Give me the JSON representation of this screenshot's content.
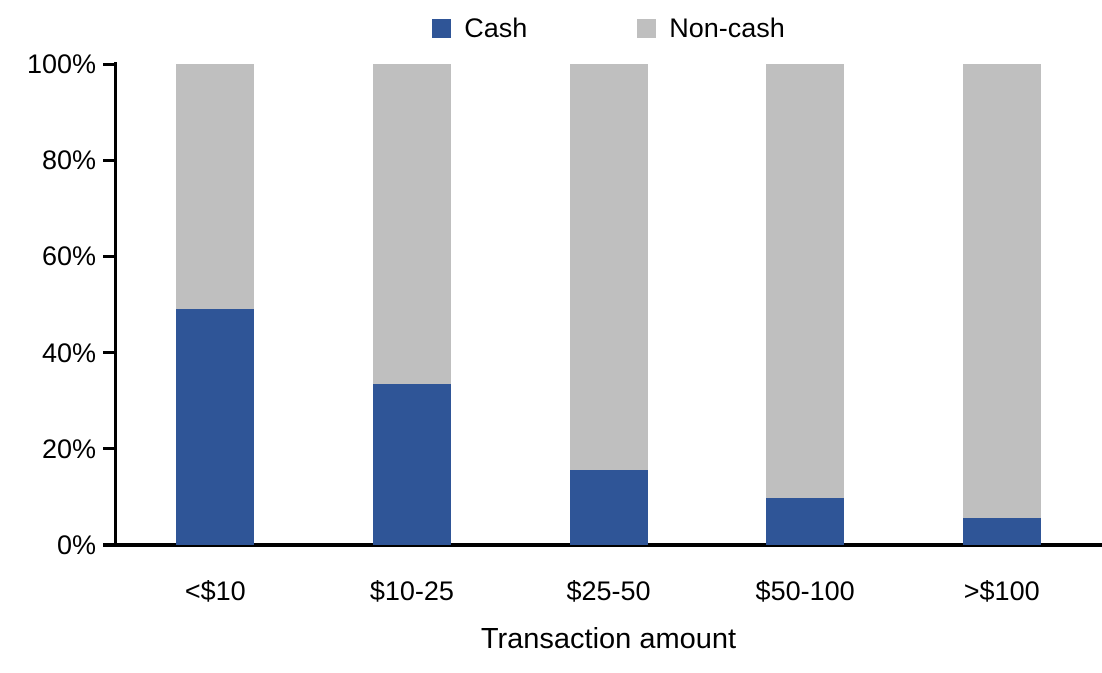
{
  "chart_data": {
    "type": "bar",
    "variant": "stacked-100-percent",
    "title": "",
    "xlabel": "Transaction amount",
    "ylabel": "",
    "categories": [
      "<$10",
      "$10-25",
      "$25-50",
      "$50-100",
      ">$100"
    ],
    "series": [
      {
        "name": "Cash",
        "color": "#2F5597",
        "values": [
          49.0,
          33.4,
          15.6,
          9.7,
          5.6
        ]
      },
      {
        "name": "Non-cash",
        "color": "#BFBFBF",
        "values": [
          51.0,
          66.6,
          84.4,
          90.3,
          94.4
        ]
      }
    ],
    "y_axis": {
      "min": 0,
      "max": 100,
      "tick_step": 20,
      "tick_labels": [
        "0%",
        "20%",
        "40%",
        "60%",
        "80%",
        "100%"
      ]
    },
    "legend_position": "top-center",
    "grid": false,
    "axis_color": "#000000",
    "text_color": "#000000"
  }
}
